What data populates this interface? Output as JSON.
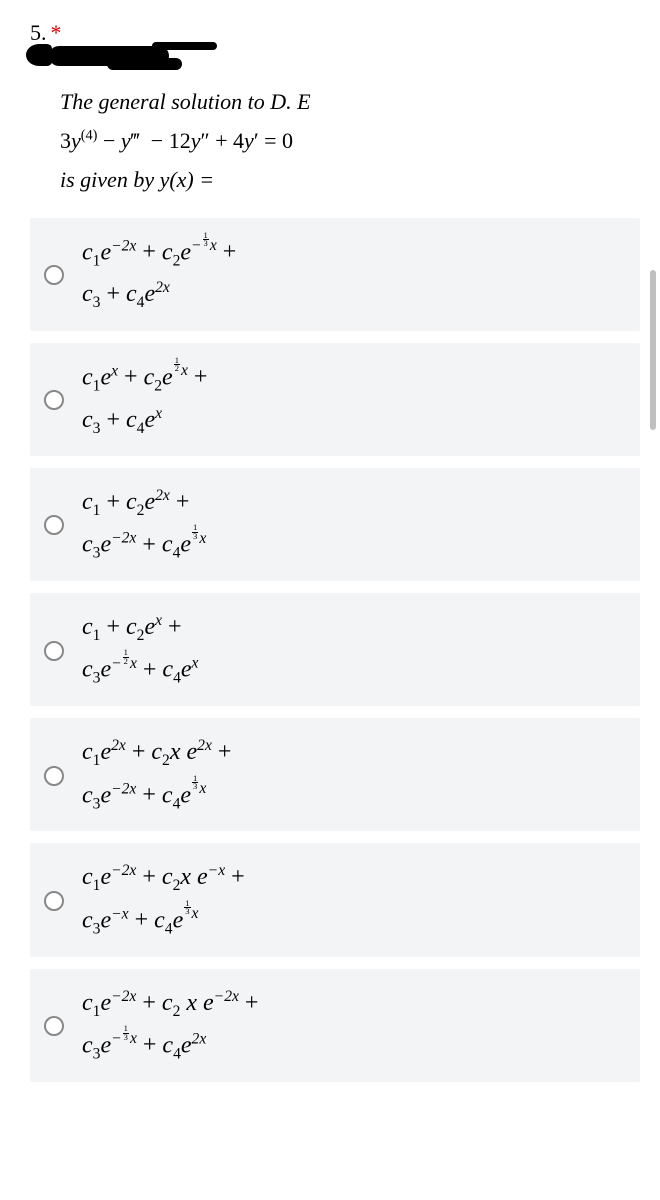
{
  "question": {
    "number": "5.",
    "asterisk": "*",
    "stem_line1": "The general solution to D. E",
    "stem_eq": "3y⁽⁴⁾ − y‴ − 12y″ + 4y′ = 0",
    "stem_line3": "is given by y(x) ="
  },
  "options": [
    {
      "line1_html": "c<sub>1</sub>e<sup>−2x</sup><span class='plus'>+</span>c<sub>2</sub>e<sup>−<span class='frac'><span class='num'>1</span><span class='den'>3</span></span>x</sup><span class='plus'>+</span>",
      "line2_html": "c<sub>3</sub><span class='plus'>+</span>c<sub>4</sub>e<sup>2x</sup>"
    },
    {
      "line1_html": "c<sub>1</sub>e<sup>x</sup><span class='plus'>+</span>c<sub>2</sub>e<sup><span class='frac'><span class='num'>1</span><span class='den'>2</span></span>x</sup><span class='plus'>+</span>",
      "line2_html": "c<sub>3</sub><span class='plus'>+</span>c<sub>4</sub>e<sup>x</sup>"
    },
    {
      "line1_html": "c<sub>1</sub><span class='plus'>+</span>c<sub>2</sub>e<sup>2x</sup><span class='plus'>+</span>",
      "line2_html": "c<sub>3</sub>e<sup>−2x</sup><span class='plus'>+</span>c<sub>4</sub>e<sup><span class='frac'><span class='num'>1</span><span class='den'>3</span></span>x</sup>"
    },
    {
      "line1_html": "c<sub>1</sub><span class='plus'>+</span>c<sub>2</sub>e<sup>x</sup><span class='plus'>+</span>",
      "line2_html": "c<sub>3</sub>e<sup>−<span class='frac'><span class='num'>1</span><span class='den'>2</span></span>x</sup><span class='plus'>+</span>c<sub>4</sub>e<sup>x</sup>"
    },
    {
      "line1_html": "c<sub>1</sub>e<sup>2x</sup><span class='plus'>+</span>c<sub>2</sub>x e<sup>2x</sup><span class='plus'>+</span>",
      "line2_html": "c<sub>3</sub>e<sup>−2x</sup><span class='plus'>+</span>c<sub>4</sub>e<sup><span class='frac'><span class='num'>1</span><span class='den'>3</span></span>x</sup>"
    },
    {
      "line1_html": "c<sub>1</sub>e<sup>−2x</sup><span class='plus'>+</span>c<sub>2</sub>x e<sup>−x</sup><span class='plus'>+</span>",
      "line2_html": "c<sub>3</sub>e<sup>−x</sup><span class='plus'>+</span>c<sub>4</sub>e<sup><span class='frac'><span class='num'>1</span><span class='den'>3</span></span>x</sup>"
    },
    {
      "line1_html": "c<sub>1</sub>e<sup>−2x</sup><span class='plus'>+</span>c<sub>2</sub> x e<sup>−2x</sup><span class='plus'>+</span>",
      "line2_html": "c<sub>3</sub>e<sup>−<span class='frac'><span class='num'>1</span><span class='den'>3</span></span>x</sup><span class='plus'>+</span>c<sub>4</sub>e<sup>2x</sup>"
    }
  ],
  "colors": {
    "option_bg": "#f3f4f6",
    "radio_border": "#888888",
    "asterisk": "#dd0000"
  }
}
